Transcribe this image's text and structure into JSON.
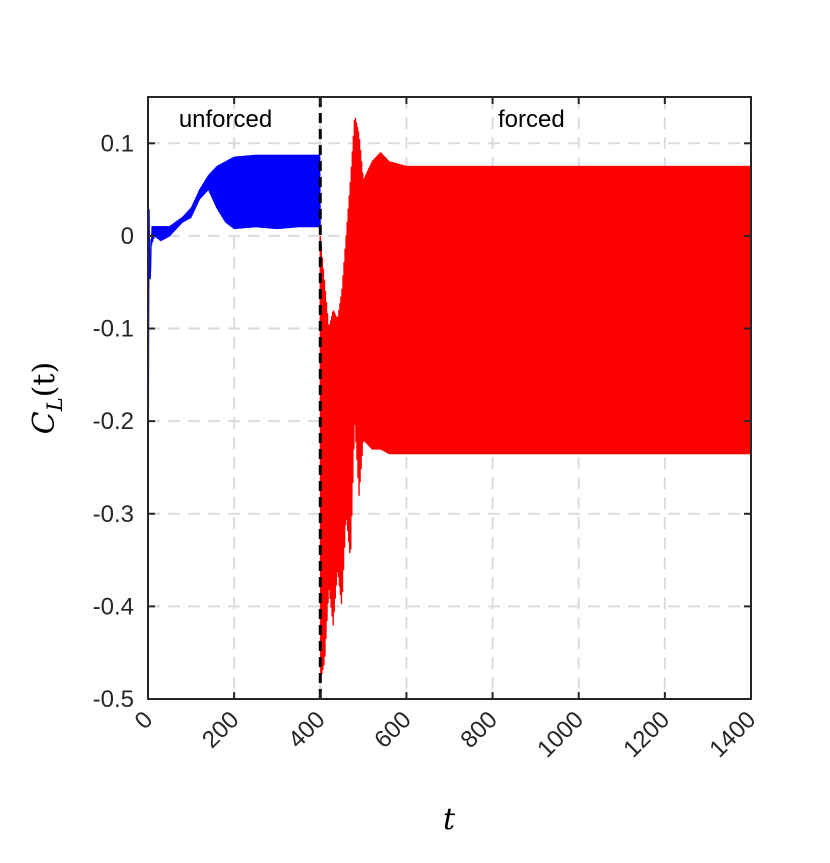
{
  "chart_data": {
    "type": "line",
    "xlabel": "t",
    "ylabel_main": "C",
    "ylabel_sub": "L",
    "ylabel_arg": "(t)",
    "xlim": [
      0,
      1400
    ],
    "ylim": [
      -0.5,
      0.15
    ],
    "x_ticks": [
      0,
      200,
      400,
      600,
      800,
      1000,
      1200,
      1400
    ],
    "x_tick_labels": [
      "0",
      "200",
      "400",
      "600",
      "800",
      "1000",
      "1200",
      "1400"
    ],
    "y_ticks": [
      0.1,
      0,
      -0.1,
      -0.2,
      -0.3,
      -0.4,
      -0.5
    ],
    "y_tick_labels": [
      "0.1",
      "0",
      "-0.1",
      "-0.2",
      "-0.3",
      "-0.4",
      "-0.5"
    ],
    "grid": true,
    "divider_x": 400,
    "regions": [
      {
        "label": "unforced",
        "x": 180
      },
      {
        "label": "forced",
        "x": 890
      }
    ],
    "series": [
      {
        "color": "#0000ff",
        "x": [
          0,
          2,
          4,
          8,
          15,
          30,
          50,
          80,
          100,
          120,
          140,
          160,
          180,
          200,
          250,
          300,
          350,
          400
        ],
        "upper": [
          -0.34,
          0.05,
          -0.06,
          0.01,
          0.01,
          0.01,
          0.01,
          0.02,
          0.03,
          0.05,
          0.065,
          0.075,
          0.08,
          0.085,
          0.087,
          0.087,
          0.087,
          0.087
        ],
        "lower": [
          -0.34,
          0.05,
          -0.06,
          -0.01,
          0.0,
          -0.005,
          0.0,
          0.015,
          0.02,
          0.04,
          0.05,
          0.03,
          0.015,
          0.008,
          0.01,
          0.008,
          0.01,
          0.01
        ]
      },
      {
        "color": "#ff0000",
        "x": [
          400,
          410,
          420,
          430,
          440,
          450,
          460,
          470,
          480,
          490,
          500,
          520,
          540,
          560,
          600,
          700,
          800,
          900,
          1000,
          1100,
          1200,
          1300,
          1400
        ],
        "upper": [
          0.0,
          -0.05,
          -0.1,
          -0.08,
          -0.09,
          -0.06,
          0.0,
          0.06,
          0.13,
          0.11,
          0.06,
          0.08,
          0.09,
          0.08,
          0.075,
          0.075,
          0.075,
          0.075,
          0.075,
          0.075,
          0.075,
          0.075,
          0.075
        ],
        "lower": [
          -0.48,
          -0.46,
          -0.38,
          -0.42,
          -0.36,
          -0.4,
          -0.3,
          -0.35,
          -0.2,
          -0.28,
          -0.22,
          -0.23,
          -0.23,
          -0.235,
          -0.235,
          -0.235,
          -0.235,
          -0.235,
          -0.235,
          -0.235,
          -0.235,
          -0.235,
          -0.235
        ]
      }
    ]
  }
}
